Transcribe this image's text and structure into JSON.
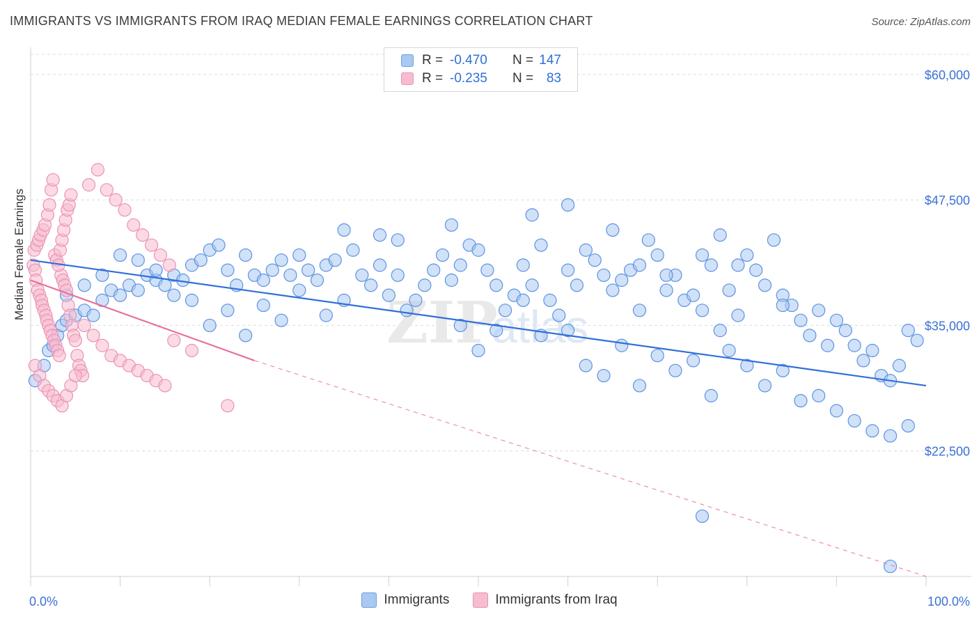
{
  "title": "IMMIGRANTS VS IMMIGRANTS FROM IRAQ MEDIAN FEMALE EARNINGS CORRELATION CHART",
  "source": "Source: ZipAtlas.com",
  "colors": {
    "blue": "#2f6fd8",
    "blue_fill": "#a9c8f2",
    "pink": "#e8709a",
    "pink_fill": "#f7bcd0",
    "grid": "#d9d9d9",
    "axis_text": "#3a72d6"
  },
  "legend_top": {
    "rows": [
      {
        "r_label": "R =",
        "r_value": "-0.470",
        "n_label": "N =",
        "n_value": "147"
      },
      {
        "r_label": "R =",
        "r_value": "-0.235",
        "n_label": "N =",
        "n_value": "83"
      }
    ]
  },
  "chart_data": {
    "type": "scatter",
    "title": "IMMIGRANTS VS IMMIGRANTS FROM IRAQ MEDIAN FEMALE EARNINGS CORRELATION CHART",
    "xlabel": "",
    "ylabel": "Median Female Earnings",
    "xlim": [
      0,
      100
    ],
    "ylim": [
      10000,
      62000
    ],
    "x_tick_labels": [
      "0.0%",
      "100.0%"
    ],
    "y_ticks": [
      22500,
      35000,
      47500,
      60000
    ],
    "y_tick_labels": [
      "$22,500",
      "$35,000",
      "$47,500",
      "$60,000"
    ],
    "watermark": "ZIPatlas",
    "series": [
      {
        "name": "Immigrants",
        "r": -0.47,
        "n": 147,
        "trend": {
          "x": [
            0,
            100
          ],
          "y": [
            41500,
            29000
          ]
        },
        "points": [
          [
            0.5,
            29500
          ],
          [
            1.5,
            31000
          ],
          [
            2,
            32500
          ],
          [
            2.5,
            33000
          ],
          [
            3,
            34000
          ],
          [
            3.5,
            35000
          ],
          [
            4,
            35500
          ],
          [
            5,
            36000
          ],
          [
            6,
            36500
          ],
          [
            7,
            36000
          ],
          [
            8,
            37500
          ],
          [
            9,
            38500
          ],
          [
            10,
            38000
          ],
          [
            11,
            39000
          ],
          [
            12,
            38500
          ],
          [
            13,
            40000
          ],
          [
            14,
            39500
          ],
          [
            15,
            39000
          ],
          [
            16,
            40000
          ],
          [
            17,
            39500
          ],
          [
            18,
            41000
          ],
          [
            19,
            41500
          ],
          [
            20,
            42500
          ],
          [
            21,
            43000
          ],
          [
            22,
            40500
          ],
          [
            23,
            39000
          ],
          [
            24,
            42000
          ],
          [
            25,
            40000
          ],
          [
            26,
            39500
          ],
          [
            27,
            40500
          ],
          [
            28,
            41500
          ],
          [
            29,
            40000
          ],
          [
            30,
            42000
          ],
          [
            31,
            40500
          ],
          [
            32,
            39500
          ],
          [
            33,
            41000
          ],
          [
            34,
            41500
          ],
          [
            35,
            44500
          ],
          [
            36,
            42500
          ],
          [
            37,
            40000
          ],
          [
            38,
            39000
          ],
          [
            39,
            41000
          ],
          [
            40,
            38000
          ],
          [
            41,
            40000
          ],
          [
            42,
            36500
          ],
          [
            43,
            37500
          ],
          [
            44,
            39000
          ],
          [
            45,
            40500
          ],
          [
            46,
            42000
          ],
          [
            47,
            39500
          ],
          [
            48,
            41000
          ],
          [
            49,
            43000
          ],
          [
            50,
            42500
          ],
          [
            51,
            40500
          ],
          [
            52,
            39000
          ],
          [
            53,
            36500
          ],
          [
            54,
            38000
          ],
          [
            55,
            41000
          ],
          [
            56,
            39000
          ],
          [
            57,
            43000
          ],
          [
            58,
            37500
          ],
          [
            59,
            36000
          ],
          [
            60,
            40500
          ],
          [
            61,
            39000
          ],
          [
            62,
            42500
          ],
          [
            63,
            41500
          ],
          [
            64,
            40000
          ],
          [
            65,
            38500
          ],
          [
            66,
            39500
          ],
          [
            67,
            40500
          ],
          [
            68,
            41000
          ],
          [
            69,
            43500
          ],
          [
            70,
            42000
          ],
          [
            71,
            38500
          ],
          [
            72,
            40000
          ],
          [
            73,
            37500
          ],
          [
            74,
            38000
          ],
          [
            75,
            36500
          ],
          [
            76,
            41000
          ],
          [
            77,
            44000
          ],
          [
            78,
            38500
          ],
          [
            79,
            36000
          ],
          [
            80,
            42000
          ],
          [
            81,
            40500
          ],
          [
            82,
            39000
          ],
          [
            83,
            43500
          ],
          [
            84,
            38000
          ],
          [
            85,
            37000
          ],
          [
            86,
            35500
          ],
          [
            87,
            34000
          ],
          [
            88,
            36500
          ],
          [
            89,
            33000
          ],
          [
            90,
            35500
          ],
          [
            91,
            34500
          ],
          [
            92,
            33000
          ],
          [
            93,
            31500
          ],
          [
            94,
            32500
          ],
          [
            95,
            30000
          ],
          [
            96,
            29500
          ],
          [
            97,
            31000
          ],
          [
            98,
            34500
          ],
          [
            99,
            33500
          ],
          [
            48,
            35000
          ],
          [
            50,
            32500
          ],
          [
            52,
            34500
          ],
          [
            55,
            37500
          ],
          [
            57,
            34000
          ],
          [
            60,
            34500
          ],
          [
            62,
            31000
          ],
          [
            64,
            30000
          ],
          [
            66,
            33000
          ],
          [
            68,
            29000
          ],
          [
            70,
            32000
          ],
          [
            72,
            30500
          ],
          [
            74,
            31500
          ],
          [
            76,
            28000
          ],
          [
            78,
            32500
          ],
          [
            80,
            31000
          ],
          [
            82,
            29000
          ],
          [
            84,
            30500
          ],
          [
            86,
            27500
          ],
          [
            88,
            28000
          ],
          [
            90,
            26500
          ],
          [
            92,
            25500
          ],
          [
            94,
            24500
          ],
          [
            96,
            24000
          ],
          [
            98,
            25000
          ],
          [
            75,
            42000
          ],
          [
            79,
            41000
          ],
          [
            84,
            37000
          ],
          [
            68,
            36500
          ],
          [
            71,
            40000
          ],
          [
            77,
            34500
          ],
          [
            65,
            44500
          ],
          [
            60,
            47000
          ],
          [
            56,
            46000
          ],
          [
            47,
            45000
          ],
          [
            41,
            43500
          ],
          [
            39,
            44000
          ],
          [
            35,
            37500
          ],
          [
            33,
            36000
          ],
          [
            30,
            38500
          ],
          [
            28,
            35500
          ],
          [
            26,
            37000
          ],
          [
            24,
            34000
          ],
          [
            22,
            36500
          ],
          [
            20,
            35000
          ],
          [
            18,
            37500
          ],
          [
            16,
            38000
          ],
          [
            14,
            40500
          ],
          [
            12,
            41500
          ],
          [
            10,
            42000
          ],
          [
            8,
            40000
          ],
          [
            6,
            39000
          ],
          [
            4,
            38000
          ],
          [
            75,
            16000
          ],
          [
            96,
            11000
          ]
        ]
      },
      {
        "name": "Immigrants from Iraq",
        "r": -0.235,
        "n": 83,
        "trend_solid": {
          "x": [
            0,
            25
          ],
          "y": [
            39500,
            31500
          ]
        },
        "trend_dashed": {
          "x": [
            25,
            100
          ],
          "y": [
            31500,
            10000
          ]
        },
        "points": [
          [
            0.3,
            41000
          ],
          [
            0.5,
            40500
          ],
          [
            0.6,
            39500
          ],
          [
            0.8,
            38500
          ],
          [
            1,
            38000
          ],
          [
            1.2,
            37500
          ],
          [
            1.3,
            37000
          ],
          [
            1.5,
            36500
          ],
          [
            1.7,
            36000
          ],
          [
            1.8,
            35500
          ],
          [
            2,
            35000
          ],
          [
            2.2,
            34500
          ],
          [
            2.4,
            34000
          ],
          [
            2.6,
            33500
          ],
          [
            2.8,
            33000
          ],
          [
            3,
            32500
          ],
          [
            3.2,
            32000
          ],
          [
            3.4,
            40000
          ],
          [
            3.6,
            39500
          ],
          [
            3.8,
            39000
          ],
          [
            4,
            38500
          ],
          [
            4.2,
            37000
          ],
          [
            4.4,
            36000
          ],
          [
            4.6,
            35000
          ],
          [
            4.8,
            34000
          ],
          [
            5,
            33500
          ],
          [
            5.2,
            32000
          ],
          [
            5.4,
            31000
          ],
          [
            5.6,
            30500
          ],
          [
            5.8,
            30000
          ],
          [
            0.4,
            42500
          ],
          [
            0.7,
            43000
          ],
          [
            0.9,
            43500
          ],
          [
            1.1,
            44000
          ],
          [
            1.4,
            44500
          ],
          [
            1.6,
            45000
          ],
          [
            1.9,
            46000
          ],
          [
            2.1,
            47000
          ],
          [
            2.3,
            48500
          ],
          [
            2.5,
            49500
          ],
          [
            2.7,
            42000
          ],
          [
            2.9,
            41500
          ],
          [
            3.1,
            41000
          ],
          [
            3.3,
            42500
          ],
          [
            3.5,
            43500
          ],
          [
            3.7,
            44500
          ],
          [
            3.9,
            45500
          ],
          [
            4.1,
            46500
          ],
          [
            4.3,
            47000
          ],
          [
            4.5,
            48000
          ],
          [
            6.5,
            49000
          ],
          [
            7.5,
            50500
          ],
          [
            8.5,
            48500
          ],
          [
            9.5,
            47500
          ],
          [
            10.5,
            46500
          ],
          [
            11.5,
            45000
          ],
          [
            12.5,
            44000
          ],
          [
            13.5,
            43000
          ],
          [
            14.5,
            42000
          ],
          [
            15.5,
            41000
          ],
          [
            6,
            35000
          ],
          [
            7,
            34000
          ],
          [
            8,
            33000
          ],
          [
            9,
            32000
          ],
          [
            10,
            31500
          ],
          [
            11,
            31000
          ],
          [
            12,
            30500
          ],
          [
            13,
            30000
          ],
          [
            14,
            29500
          ],
          [
            15,
            29000
          ],
          [
            0.5,
            31000
          ],
          [
            1,
            30000
          ],
          [
            1.5,
            29000
          ],
          [
            2,
            28500
          ],
          [
            2.5,
            28000
          ],
          [
            3,
            27500
          ],
          [
            3.5,
            27000
          ],
          [
            4,
            28000
          ],
          [
            4.5,
            29000
          ],
          [
            5,
            30000
          ],
          [
            22,
            27000
          ],
          [
            16,
            33500
          ],
          [
            18,
            32500
          ]
        ]
      }
    ]
  },
  "axes": {
    "y_title": "Median Female Earnings",
    "x_left_label": "0.0%",
    "x_right_label": "100.0%"
  },
  "bottom_legend": {
    "items": [
      "Immigrants",
      "Immigrants from Iraq"
    ]
  }
}
